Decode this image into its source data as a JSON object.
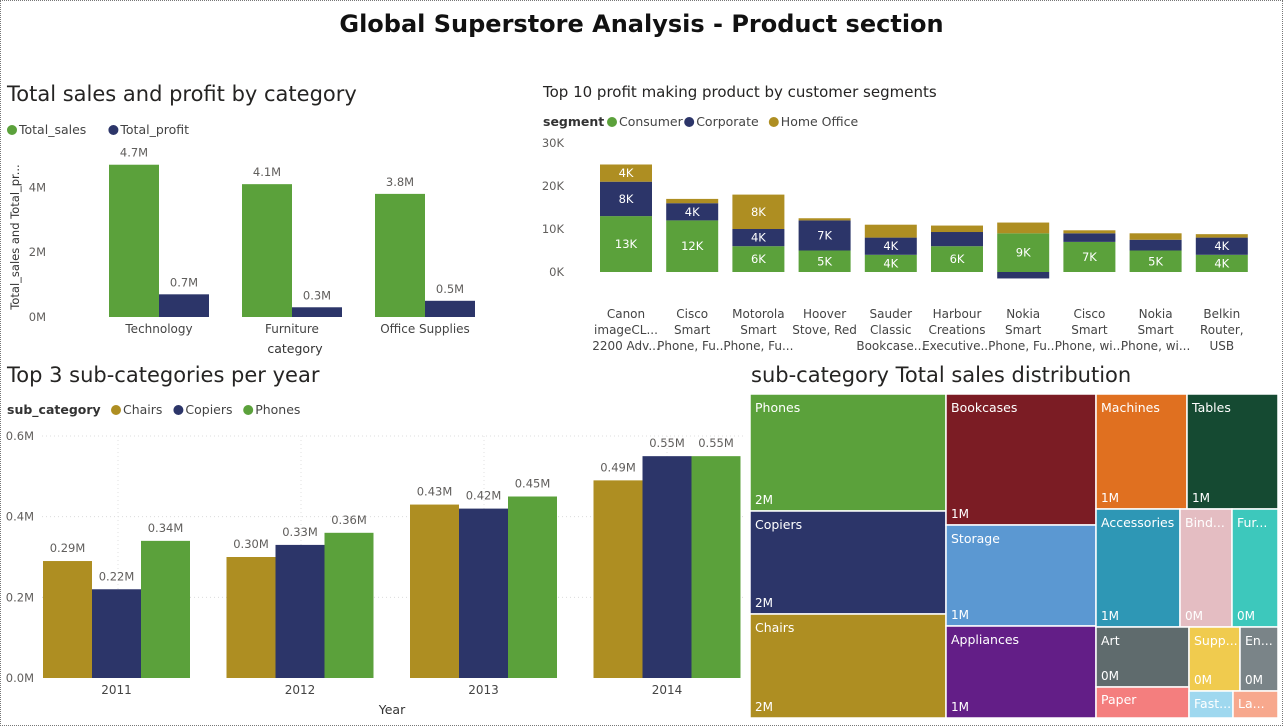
{
  "page": {
    "title": "Global Superstore Analysis - Product section"
  },
  "colors": {
    "green": "#5BA13B",
    "navy": "#2C3569",
    "gold": "#AE8E22"
  },
  "chart_data": [
    {
      "id": "sales_profit",
      "type": "bar",
      "title": "Total sales and profit by category",
      "xlabel": "category",
      "ylabel": "Total_sales and Total_pr...",
      "ylim": [
        0,
        5000000
      ],
      "yticks": [
        {
          "v": 0,
          "label": "0M"
        },
        {
          "v": 2000000,
          "label": "2M"
        },
        {
          "v": 4000000,
          "label": "4M"
        }
      ],
      "categories": [
        "Technology",
        "Furniture",
        "Office Supplies"
      ],
      "legend_position": "top-left",
      "grid": false,
      "series": [
        {
          "name": "Total_sales",
          "color": "#5BA13B",
          "values": [
            4700000,
            4100000,
            3800000
          ],
          "labels": [
            "4.7M",
            "4.1M",
            "3.8M"
          ]
        },
        {
          "name": "Total_profit",
          "color": "#2C3569",
          "values": [
            700000,
            300000,
            500000
          ],
          "labels": [
            "0.7M",
            "0.3M",
            "0.5M"
          ]
        }
      ]
    },
    {
      "id": "top10",
      "type": "bar",
      "stacked": true,
      "title": "Top 10 profit making product by customer segments",
      "legend_title": "segment",
      "legend_position": "top-left",
      "ylim": [
        -2000,
        30000
      ],
      "yticks": [
        {
          "v": 0,
          "label": "0K"
        },
        {
          "v": 10000,
          "label": "10K"
        },
        {
          "v": 20000,
          "label": "20K"
        },
        {
          "v": 30000,
          "label": "30K"
        }
      ],
      "categories": [
        [
          "Canon",
          "imageCL...",
          "2200 Adv..."
        ],
        [
          "Cisco",
          "Smart",
          "Phone, Fu..."
        ],
        [
          "Motorola",
          "Smart",
          "Phone, Fu..."
        ],
        [
          "Hoover",
          "Stove, Red"
        ],
        [
          "Sauder",
          "Classic",
          "Bookcase..."
        ],
        [
          "Harbour",
          "Creations",
          "Executive..."
        ],
        [
          "Nokia",
          "Smart",
          "Phone, Fu..."
        ],
        [
          "Cisco",
          "Smart",
          "Phone, wi..."
        ],
        [
          "Nokia",
          "Smart",
          "Phone, wi..."
        ],
        [
          "Belkin",
          "Router,",
          "USB"
        ]
      ],
      "series": [
        {
          "name": "Consumer",
          "color": "#5BA13B",
          "values": [
            13000,
            12000,
            6000,
            5000,
            4000,
            6000,
            9000,
            7000,
            5000,
            4000
          ],
          "labels": [
            "13K",
            "12K",
            "6K",
            "5K",
            "4K",
            "6K",
            "9K",
            "7K",
            "5K",
            "4K"
          ]
        },
        {
          "name": "Corporate",
          "color": "#2C3569",
          "values": [
            8000,
            4000,
            4000,
            7000,
            4000,
            3300,
            -1500,
            2000,
            2500,
            4000
          ],
          "labels": [
            "8K",
            "4K",
            "4K",
            "7K",
            "4K",
            "",
            "",
            "",
            "",
            "4K"
          ]
        },
        {
          "name": "Home Office",
          "color": "#AE8E22",
          "values": [
            4000,
            1000,
            8000,
            500,
            3000,
            1500,
            2500,
            700,
            1500,
            800
          ],
          "labels": [
            "4K",
            "",
            "8K",
            "",
            "",
            "",
            "",
            "",
            "",
            ""
          ]
        }
      ]
    },
    {
      "id": "top3",
      "type": "bar",
      "title": "Top 3 sub-categories per year",
      "legend_title": "sub_category",
      "legend_position": "top-left",
      "xlabel": "Year",
      "ylim": [
        0,
        0.6
      ],
      "yticks": [
        {
          "v": 0,
          "label": "0.0M"
        },
        {
          "v": 0.2,
          "label": "0.2M"
        },
        {
          "v": 0.4,
          "label": "0.4M"
        },
        {
          "v": 0.6,
          "label": "0.6M"
        }
      ],
      "grid": true,
      "categories": [
        "2011",
        "2012",
        "2013",
        "2014"
      ],
      "series": [
        {
          "name": "Chairs",
          "color": "#AE8E22",
          "values": [
            0.29,
            0.3,
            0.43,
            0.49
          ],
          "labels": [
            "0.29M",
            "0.30M",
            "0.43M",
            "0.49M"
          ]
        },
        {
          "name": "Copiers",
          "color": "#2C3569",
          "values": [
            0.22,
            0.33,
            0.42,
            0.55
          ],
          "labels": [
            "0.22M",
            "0.33M",
            "0.42M",
            "0.55M"
          ]
        },
        {
          "name": "Phones",
          "color": "#5BA13B",
          "values": [
            0.34,
            0.36,
            0.45,
            0.55
          ],
          "labels": [
            "0.34M",
            "0.36M",
            "0.45M",
            "0.55M"
          ]
        }
      ]
    },
    {
      "id": "treemap",
      "type": "treemap",
      "title": "sub-category Total sales distribution",
      "tiles": [
        {
          "name": "Phones",
          "value": "2M",
          "color": "#5BA13B"
        },
        {
          "name": "Copiers",
          "value": "2M",
          "color": "#2C3569"
        },
        {
          "name": "Chairs",
          "value": "2M",
          "color": "#AE8E22"
        },
        {
          "name": "Bookcases",
          "value": "1M",
          "color": "#7B1C24"
        },
        {
          "name": "Storage",
          "value": "1M",
          "color": "#5B98D2"
        },
        {
          "name": "Appliances",
          "value": "1M",
          "color": "#631E87"
        },
        {
          "name": "Machines",
          "value": "1M",
          "color": "#E07020"
        },
        {
          "name": "Tables",
          "value": "1M",
          "color": "#154A32"
        },
        {
          "name": "Accessories",
          "value": "1M",
          "color": "#2E97B5"
        },
        {
          "name": "Bind...",
          "value": "0M",
          "color": "#E4BDC2"
        },
        {
          "name": "Fur...",
          "value": "0M",
          "color": "#3DC8BC"
        },
        {
          "name": "Art",
          "value": "0M",
          "color": "#5F6B6D"
        },
        {
          "name": "Supp...",
          "value": "0M",
          "color": "#F0CB4E"
        },
        {
          "name": "En...",
          "value": "0M",
          "color": "#7A8488"
        },
        {
          "name": "Paper",
          "value": "",
          "color": "#F47E7E"
        },
        {
          "name": "Fast...",
          "value": "",
          "color": "#9FD8EF"
        },
        {
          "name": "La...",
          "value": "",
          "color": "#F7A88D"
        }
      ]
    }
  ]
}
